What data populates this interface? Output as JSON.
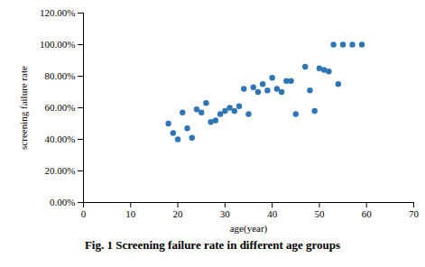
{
  "chart_data": {
    "type": "scatter",
    "title": "Fig. 1   Screening failure rate in different age groups",
    "x_label": "age(year)",
    "y_label": "screening failure rate",
    "color": "#2e75b6",
    "marker": "circle",
    "grid": false,
    "x": [
      18,
      19,
      20,
      21,
      22,
      23,
      24,
      25,
      26,
      27,
      28,
      29,
      30,
      31,
      32,
      33,
      34,
      35,
      36,
      37,
      38,
      39,
      40,
      41,
      42,
      43,
      44,
      45,
      47,
      48,
      49,
      50,
      51,
      52,
      53,
      54,
      55,
      57,
      59
    ],
    "values": [
      50,
      44,
      40,
      57,
      47,
      41,
      59,
      57,
      63,
      51,
      52,
      56,
      58,
      60,
      58,
      61,
      72,
      56,
      73,
      70,
      75,
      71,
      79,
      72,
      70,
      77,
      77,
      56,
      86,
      71,
      58,
      85,
      84,
      83,
      100,
      75,
      100,
      100,
      100
    ],
    "xlim": [
      0,
      70
    ],
    "xticks": [
      0,
      10,
      20,
      30,
      40,
      50,
      60,
      70
    ],
    "ylim": [
      0,
      120
    ],
    "yticks": [
      {
        "value": 0,
        "label": "0.00%"
      },
      {
        "value": 20,
        "label": "20.00%"
      },
      {
        "value": 40,
        "label": "40.00%"
      },
      {
        "value": 60,
        "label": "60.00%"
      },
      {
        "value": 80,
        "label": "80.00%"
      },
      {
        "value": 100,
        "label": "100.00%"
      },
      {
        "value": 120,
        "label": "120.00%"
      }
    ]
  }
}
